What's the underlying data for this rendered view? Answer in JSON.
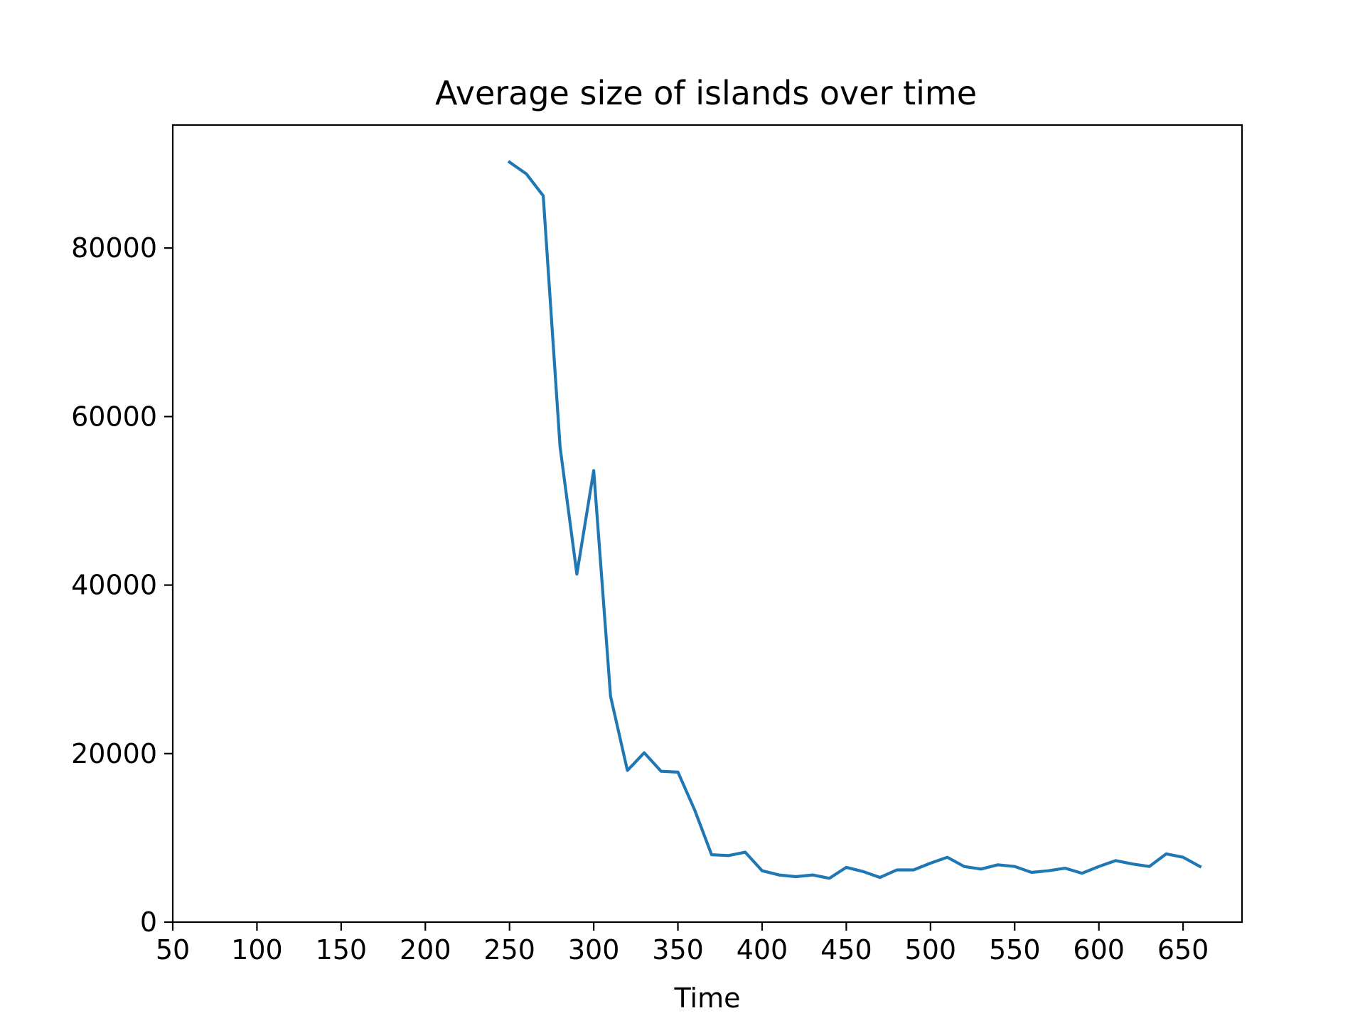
{
  "chart_data": {
    "type": "line",
    "title": "Average size of islands over time",
    "xlabel": "Time",
    "ylabel": "",
    "xlim": [
      50,
      685
    ],
    "ylim": [
      0,
      94600
    ],
    "xticks": [
      50,
      100,
      150,
      200,
      250,
      300,
      350,
      400,
      450,
      500,
      550,
      600,
      650
    ],
    "yticks": [
      0,
      20000,
      40000,
      60000,
      80000
    ],
    "grid": false,
    "legend": "none",
    "colors": {
      "line": "#1f77b4",
      "axes": "#000000",
      "background": "#ffffff"
    },
    "series": [
      {
        "x": [
          250,
          260,
          270,
          280,
          290,
          300,
          310,
          320,
          330,
          340,
          350,
          360,
          370,
          380,
          390,
          400,
          410,
          420,
          430,
          440,
          450,
          460,
          470,
          480,
          490,
          500,
          510,
          520,
          530,
          540,
          550,
          560,
          570,
          580,
          590,
          600,
          610,
          620,
          630,
          640,
          650,
          660
        ],
        "y": [
          90200,
          88800,
          86200,
          56400,
          41300,
          53600,
          26800,
          18000,
          20100,
          17900,
          17800,
          13300,
          8000,
          7900,
          8300,
          6100,
          5600,
          5400,
          5600,
          5200,
          6500,
          6000,
          5300,
          6200,
          6200,
          7000,
          7700,
          6600,
          6300,
          6800,
          6600,
          5900,
          6100,
          6400,
          5800,
          6600,
          7300,
          6900,
          6600,
          8100,
          7700,
          6600
        ]
      }
    ]
  }
}
